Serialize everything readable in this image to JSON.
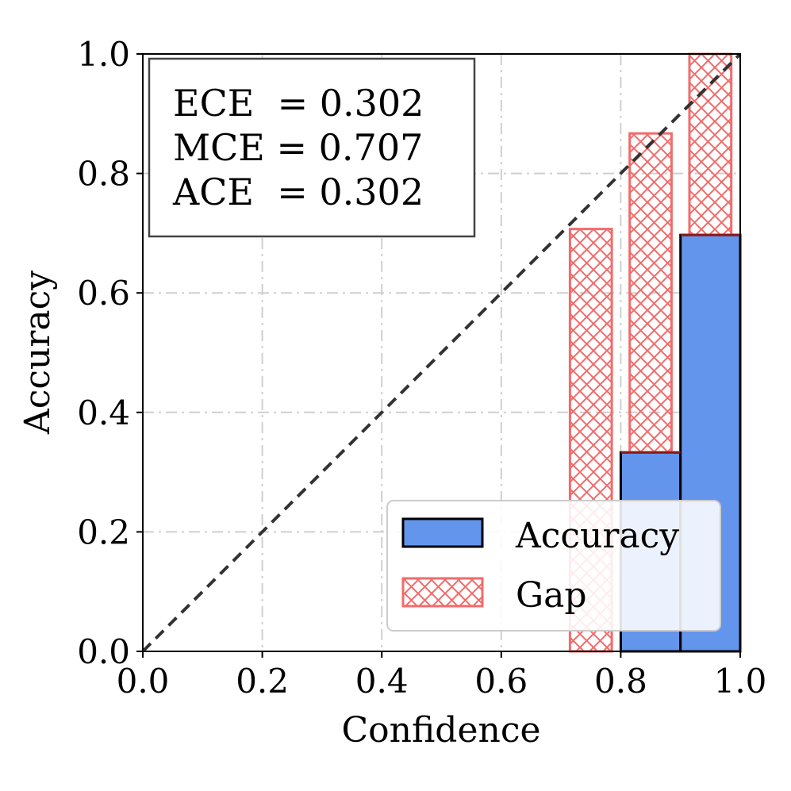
{
  "chart_data": {
    "type": "bar",
    "title": "",
    "xlabel": "Confidence",
    "ylabel": "Accuracy",
    "xlim": [
      0.0,
      1.0
    ],
    "ylim": [
      0.0,
      1.0
    ],
    "xticks": [
      "0.0",
      "0.2",
      "0.4",
      "0.6",
      "0.8",
      "1.0"
    ],
    "yticks": [
      "0.0",
      "0.2",
      "0.4",
      "0.6",
      "0.8",
      "1.0"
    ],
    "grid": true,
    "diagonal": {
      "style": "dashed",
      "from": [
        0.0,
        0.0
      ],
      "to": [
        1.0,
        1.0
      ]
    },
    "series": [
      {
        "name": "Accuracy",
        "kind": "bar",
        "color": "#6495ED",
        "edgecolor": "#000000",
        "bins": [
          {
            "x0": 0.8,
            "x1": 0.9,
            "value": 0.333
          },
          {
            "x0": 0.9,
            "x1": 1.0,
            "value": 0.697
          }
        ]
      },
      {
        "name": "Gap",
        "kind": "hatched-bar",
        "color": "#F26B6B",
        "bins": [
          {
            "x0": 0.715,
            "x1": 0.785,
            "bottom": 0.0,
            "top": 0.707
          },
          {
            "x0": 0.815,
            "x1": 0.885,
            "bottom": 0.333,
            "top": 0.867
          },
          {
            "x0": 0.915,
            "x1": 0.985,
            "bottom": 0.697,
            "top": 1.0
          }
        ]
      }
    ],
    "legend": {
      "position": "lower-right",
      "entries": [
        {
          "label": "Accuracy",
          "style": "solid",
          "color": "#6495ED"
        },
        {
          "label": "Gap",
          "style": "hatched",
          "color": "#F26B6B"
        }
      ]
    },
    "metrics_box": {
      "position": "top-left",
      "lines": [
        "ECE  = 0.302",
        "MCE = 0.707",
        "ACE  = 0.302"
      ]
    }
  }
}
